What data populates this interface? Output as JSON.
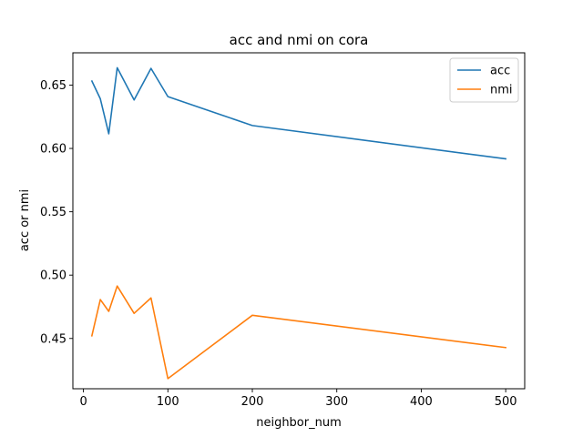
{
  "chart_data": {
    "type": "line",
    "title": "acc and nmi on cora",
    "xlabel": "neighbor_num",
    "ylabel": "acc or nmi",
    "xlim": [
      -12.5,
      522.5
    ],
    "ylim": [
      0.4103,
      0.6755
    ],
    "xticks": [
      0,
      100,
      200,
      300,
      400,
      500
    ],
    "yticks": [
      0.45,
      0.5,
      0.55,
      0.6,
      0.65
    ],
    "ytick_labels": [
      "0.45",
      "0.50",
      "0.55",
      "0.60",
      "0.65"
    ],
    "legend_position": "top-right",
    "grid": false,
    "x": [
      10,
      20,
      30,
      40,
      60,
      80,
      100,
      200,
      500
    ],
    "series": [
      {
        "name": "acc",
        "color": "#1f77b4",
        "values": [
          0.6532,
          0.6392,
          0.6116,
          0.6637,
          0.6383,
          0.6632,
          0.6409,
          0.6181,
          0.5918
        ]
      },
      {
        "name": "nmi",
        "color": "#ff7f0e",
        "values": [
          0.4521,
          0.4807,
          0.4714,
          0.4914,
          0.4698,
          0.482,
          0.4183,
          0.4683,
          0.4428
        ]
      }
    ]
  }
}
